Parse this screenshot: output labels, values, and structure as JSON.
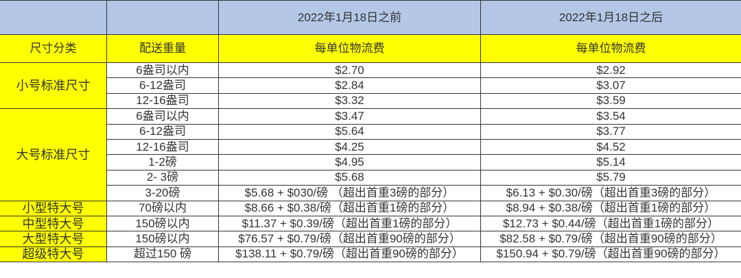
{
  "colors": {
    "header_bg": "#b4c7e7",
    "highlight_bg": "#ffff00"
  },
  "header": {
    "col0": "",
    "col1": "",
    "col2": "2022年1月18日之前",
    "col3": "2022年1月18日之后"
  },
  "subheader": {
    "col0": "尺寸分类",
    "col1": "配送重量",
    "col2": "每单位物流费",
    "col3": "每单位物流费"
  },
  "categories": [
    {
      "name": "小号标准尺寸",
      "rows": [
        {
          "weight": "6盎司以内",
          "before": "$2.70",
          "after": "$2.92"
        },
        {
          "weight": "6-12盎司",
          "before": "$2.84",
          "after": "$3.07"
        },
        {
          "weight": "12-16盎司",
          "before": "$3.32",
          "after": "$3.59"
        }
      ]
    },
    {
      "name": "大号标准尺寸",
      "rows": [
        {
          "weight": "6盎司以内",
          "before": "$3.47",
          "after": "$3.54"
        },
        {
          "weight": "6-12盎司",
          "before": "$5.64",
          "after": "$3.77"
        },
        {
          "weight": "12-16盎司",
          "before": "$4.25",
          "after": "$4.52"
        },
        {
          "weight": "1-2磅",
          "before": "$4.95",
          "after": "$5.14"
        },
        {
          "weight": "2- 3磅",
          "before": "$5.68",
          "after": "$5.79"
        },
        {
          "weight": "3-20磅",
          "before": "$5.68 + $030/磅 （超出首重3磅的部分）",
          "after": "$6.13 + $0.30/磅（超出首重3磅的部分）"
        }
      ]
    },
    {
      "name": "小型特大号",
      "rows": [
        {
          "weight": "70磅以内",
          "before": "$8.66 + $0.38/磅（超出首重1磅的部分）",
          "after": "$8.94 + $0.38/磅（超出首重1磅的部分）"
        }
      ]
    },
    {
      "name": "中型特大号",
      "rows": [
        {
          "weight": "150磅以内",
          "before": "$11.37 + $0.39/磅（超出首重1磅的部分）",
          "after": "$12.73 + $0.44/磅（超出首重1磅的部分）"
        }
      ]
    },
    {
      "name": "大型特大号",
      "rows": [
        {
          "weight": "150磅以内",
          "before": "$76.57 + $0.79/磅（超出首重90磅的部分）",
          "after": "$82.58 + $0.79/磅（超出首重90磅的部分）"
        }
      ]
    },
    {
      "name": "超级特大号",
      "rows": [
        {
          "weight": "超过150 磅",
          "before": "$138.11 + $0.79/磅（超出首重90磅的部分）",
          "after": "$150.94 + $0.79/磅（超出首重90磅的部分）"
        }
      ]
    }
  ]
}
